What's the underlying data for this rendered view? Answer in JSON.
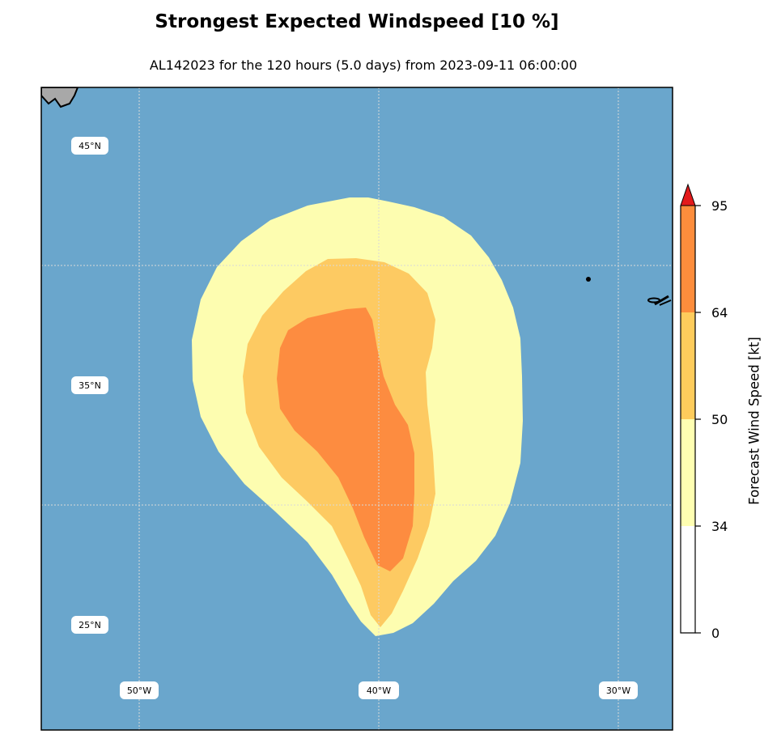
{
  "title": "Strongest Expected Windspeed [10 %]",
  "subtitle": "AL142023 for the 120 hours (5.0 days) from 2023-09-11 06:00:00",
  "map": {
    "ocean_color": "#6aa6cc",
    "land_color": "#a8a8a8",
    "gridline_color": "#d9d9d9",
    "lat_labels": [
      "45°N",
      "35°N",
      "25°N"
    ],
    "lon_labels": [
      "50°W",
      "40°W",
      "30°W"
    ]
  },
  "colorbar": {
    "label": "Forecast Wind Speed [kt]",
    "ticks": [
      "95",
      "64",
      "50",
      "34",
      "0"
    ],
    "levels": [
      0,
      34,
      50,
      64,
      95
    ],
    "colors": [
      "#ffffff",
      "#ffffb2",
      "#fecc5c",
      "#fd8d3c",
      "#e31a1c"
    ],
    "extend": "max"
  },
  "wind_bands": [
    {
      "threshold_kt": 34,
      "color": "#fdfdb0"
    },
    {
      "threshold_kt": 50,
      "color": "#fdca62"
    },
    {
      "threshold_kt": 64,
      "color": "#fd8c40"
    }
  ]
}
